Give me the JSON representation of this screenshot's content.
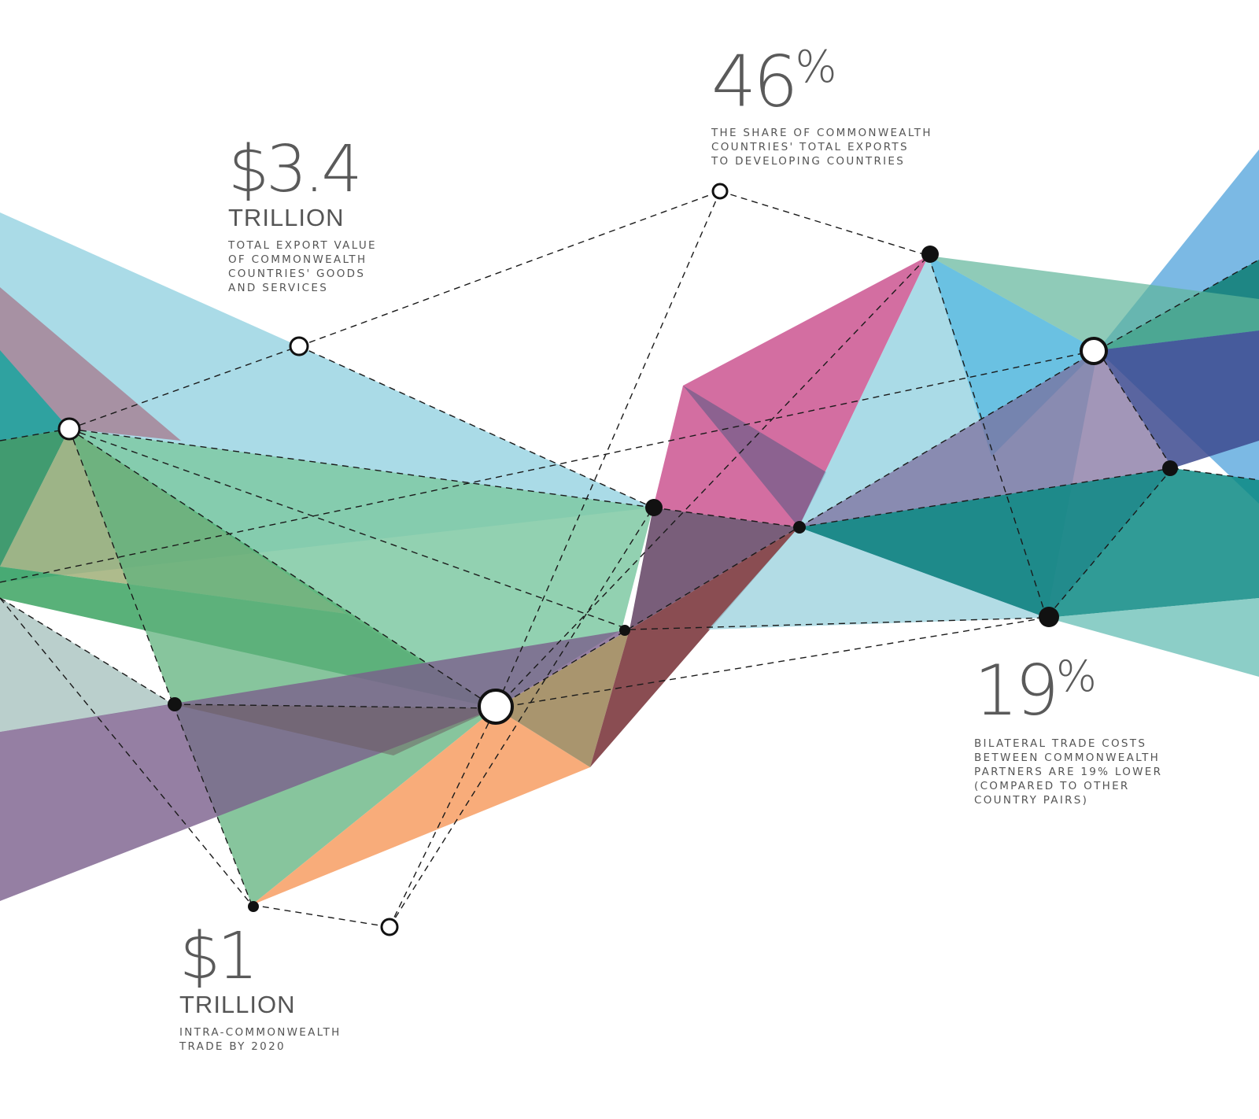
{
  "stats": {
    "export_value": {
      "figure": "$3.4",
      "unit": "TRILLION",
      "lines": [
        "TOTAL EXPORT VALUE",
        "OF COMMONWEALTH",
        "COUNTRIES' GOODS",
        "AND SERVICES"
      ]
    },
    "developing_share": {
      "figure": "46",
      "suffix": "%",
      "lines": [
        "THE SHARE OF COMMONWEALTH",
        "COUNTRIES' TOTAL EXPORTS",
        "TO DEVELOPING COUNTRIES"
      ]
    },
    "trade_costs": {
      "figure": "19",
      "suffix": "%",
      "lines": [
        "BILATERAL TRADE COSTS",
        "BETWEEN COMMONWEALTH",
        "PARTNERS ARE 19% LOWER",
        "(COMPARED TO OTHER",
        "COUNTRY PAIRS)"
      ]
    },
    "intra_trade": {
      "figure": "$1",
      "unit": "TRILLION",
      "lines": [
        "INTRA-COMMONWEALTH",
        "TRADE BY 2020"
      ]
    }
  },
  "colors": {
    "light_blue": "#8ecfdf",
    "green": "#2fae5b",
    "mint": "#7fc9a3",
    "magenta": "#c84a8a",
    "purple": "#7a5f8c",
    "teal": "#0c8a84",
    "navy": "#3d4a8f",
    "orange": "#f7a36b",
    "maroon": "#7d3a3f",
    "node_dark": "#111111",
    "text": "#555555"
  }
}
